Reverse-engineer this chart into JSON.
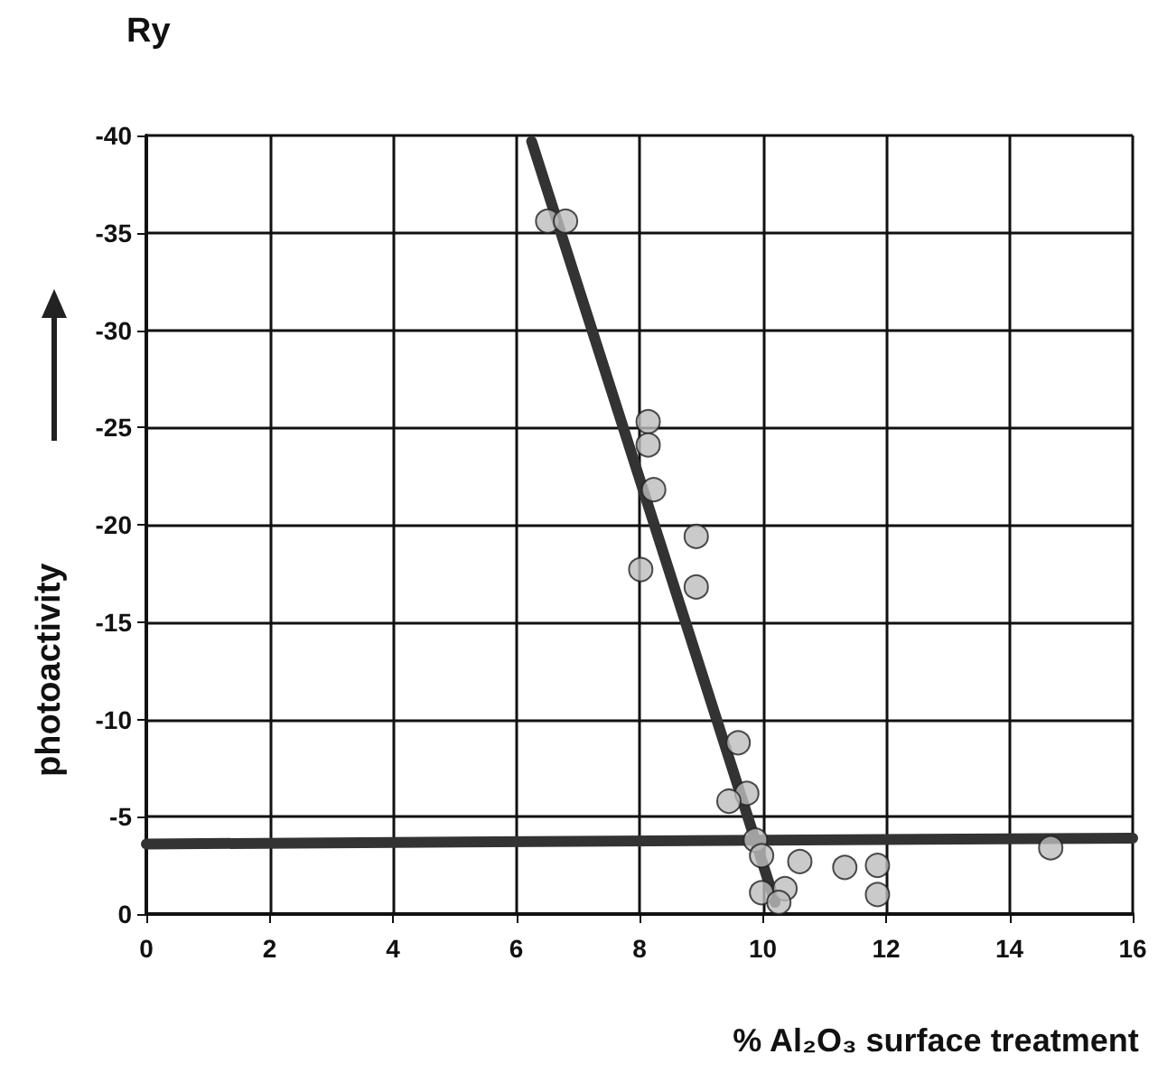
{
  "chart_data": {
    "type": "scatter",
    "ylabel": "Ry",
    "xlabel": "% Al₂O₃ surface treatment",
    "annotations": [
      "photoactivity"
    ],
    "xlim": [
      0,
      16
    ],
    "xticks": [
      0,
      2,
      4,
      6,
      8,
      10,
      12,
      14,
      16
    ],
    "ylim": [
      0,
      -40
    ],
    "yticks": [
      0,
      -5,
      -10,
      -15,
      -20,
      -25,
      -30,
      -35,
      -40
    ],
    "grid": true,
    "marker": "circle",
    "series": [
      {
        "color": "#bdbdbd",
        "x": [
          6.51,
          6.8,
          8.14,
          8.14,
          8.23,
          8.02,
          8.92,
          8.92,
          9.6,
          9.74,
          9.45,
          9.88,
          9.98,
          9.98,
          10.36,
          10.26,
          10.6,
          11.33,
          11.86,
          11.86,
          14.67
        ],
        "values": [
          -35.6,
          -35.6,
          -25.3,
          -24.1,
          -21.8,
          -17.7,
          -19.4,
          -16.8,
          -8.8,
          -6.2,
          -5.8,
          -3.8,
          -3.0,
          -1.1,
          -1.3,
          -0.6,
          -2.7,
          -2.4,
          -2.5,
          -1.0,
          -3.4
        ]
      },
      {
        "type": "line",
        "color": "#333333",
        "x": [
          6.25,
          10.2
        ],
        "values": [
          -39.7,
          -0.6
        ],
        "marker": "none",
        "line_style": "solid"
      },
      {
        "type": "line",
        "color": "#333333",
        "x": [
          0,
          16
        ],
        "values": [
          -3.6,
          -3.9
        ],
        "marker": "none",
        "line_style": "solid"
      }
    ]
  }
}
